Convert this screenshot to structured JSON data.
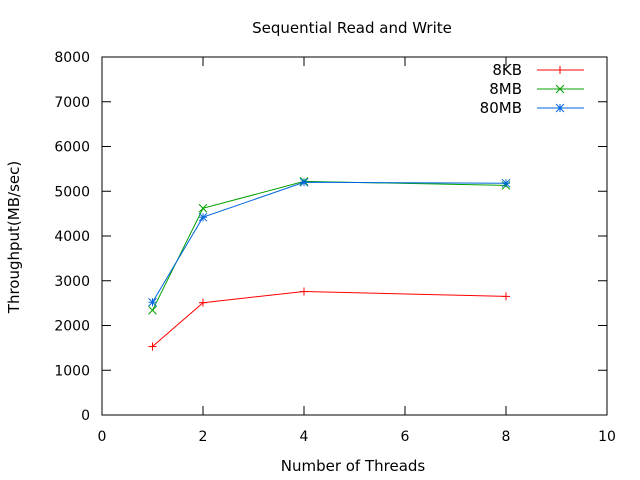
{
  "chart_data": {
    "type": "line",
    "title": "Sequential Read and Write",
    "xlabel": "Number of Threads",
    "ylabel": "Throughput(MB/sec)",
    "xlim": [
      0,
      10
    ],
    "ylim": [
      0,
      8000
    ],
    "xticks": [
      0,
      2,
      4,
      6,
      8,
      10
    ],
    "yticks": [
      0,
      1000,
      2000,
      3000,
      4000,
      5000,
      6000,
      7000,
      8000
    ],
    "grid": false,
    "legend_position": "top-right",
    "x": [
      1,
      2,
      4,
      8
    ],
    "series": [
      {
        "name": "8KB",
        "color": "#ff0000",
        "marker": "plus",
        "values": [
          1530,
          2510,
          2760,
          2650
        ]
      },
      {
        "name": "8MB",
        "color": "#00a000",
        "marker": "cross",
        "values": [
          2340,
          4620,
          5220,
          5130
        ]
      },
      {
        "name": "80MB",
        "color": "#0066dd",
        "marker": "star",
        "values": [
          2520,
          4420,
          5200,
          5180
        ]
      }
    ]
  }
}
